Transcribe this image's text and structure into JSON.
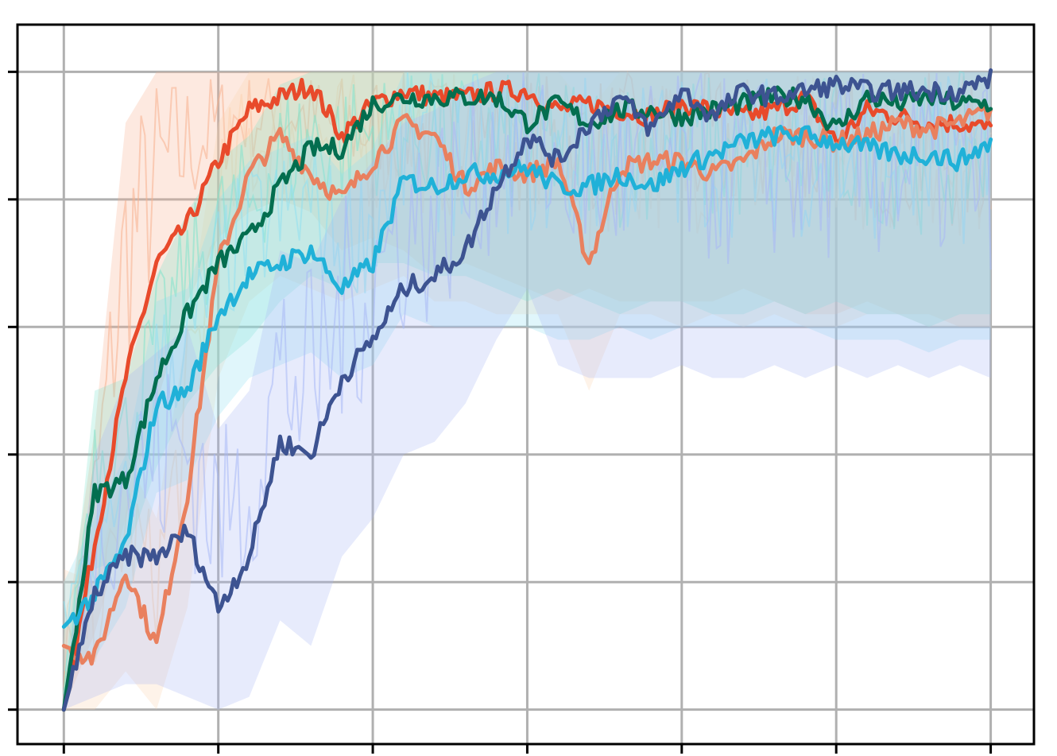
{
  "chart_data": {
    "type": "line",
    "title": "",
    "xlabel": "",
    "ylabel": "",
    "x_ticks": [
      0,
      1,
      2,
      3,
      4,
      5,
      6
    ],
    "y_ticks": [
      0,
      1,
      2,
      3,
      4,
      5
    ],
    "xlim": [
      -0.3,
      6.28
    ],
    "ylim": [
      -0.27,
      5.37
    ],
    "tick_labels_shown": false,
    "grid": true,
    "legend": "none",
    "x": [
      0.0,
      0.2,
      0.4,
      0.6,
      0.8,
      1.0,
      1.2,
      1.4,
      1.6,
      1.8,
      2.0,
      2.2,
      2.4,
      2.6,
      2.8,
      3.0,
      3.2,
      3.4,
      3.6,
      3.8,
      4.0,
      4.2,
      4.4,
      4.6,
      4.8,
      5.0,
      5.2,
      5.4,
      5.6,
      5.8,
      6.0
    ],
    "series": [
      {
        "color": "#e84a2b",
        "band_color": "#f7b08e",
        "values": [
          0.0,
          1.3,
          2.6,
          3.5,
          3.8,
          4.3,
          4.7,
          4.8,
          4.9,
          4.5,
          4.75,
          4.85,
          4.8,
          4.8,
          4.85,
          4.85,
          4.7,
          4.75,
          4.7,
          4.65,
          4.75,
          4.7,
          4.65,
          4.7,
          4.8,
          4.45,
          4.7,
          4.65,
          4.6,
          4.6,
          4.55
        ],
        "band_low": [
          0.0,
          0.6,
          1.5,
          2.4,
          3.2,
          3.7,
          3.9,
          4.0,
          3.9,
          3.6,
          3.7,
          3.6,
          3.4,
          3.5,
          3.4,
          3.3,
          3.2,
          3.3,
          3.2,
          3.2,
          3.2,
          3.2,
          3.3,
          3.2,
          3.1,
          3.1,
          3.2,
          3.1,
          3.1,
          3.0,
          3.0
        ],
        "band_high": [
          0.5,
          2.2,
          4.6,
          5.0,
          5.0,
          5.0,
          5.0,
          5.0,
          5.0,
          5.0,
          5.0,
          5.0,
          5.0,
          5.0,
          5.0,
          5.0,
          5.0,
          5.0,
          5.0,
          5.0,
          5.0,
          5.0,
          5.0,
          5.0,
          5.0,
          5.0,
          5.0,
          5.0,
          5.0,
          5.0,
          5.0
        ]
      },
      {
        "color": "#e9805e",
        "band_color": "#fcd3b0",
        "values": [
          0.5,
          0.4,
          1.1,
          0.5,
          1.7,
          3.5,
          4.2,
          4.5,
          4.2,
          4.0,
          4.3,
          4.6,
          4.5,
          4.1,
          4.25,
          4.2,
          4.3,
          3.5,
          4.25,
          4.3,
          4.3,
          4.2,
          4.3,
          4.5,
          4.5,
          4.45,
          4.5,
          4.6,
          4.55,
          4.6,
          4.7
        ],
        "band_low": [
          0.0,
          0.0,
          0.3,
          0.0,
          0.8,
          2.6,
          3.2,
          3.4,
          3.3,
          3.2,
          3.3,
          3.4,
          3.2,
          3.2,
          3.1,
          3.1,
          3.1,
          2.5,
          3.1,
          3.1,
          3.0,
          3.1,
          3.0,
          3.1,
          3.0,
          3.0,
          3.1,
          3.1,
          3.0,
          3.0,
          3.0
        ],
        "band_high": [
          1.1,
          1.0,
          2.0,
          1.5,
          3.0,
          4.6,
          5.0,
          5.0,
          5.0,
          5.0,
          5.0,
          5.0,
          5.0,
          5.0,
          5.0,
          5.0,
          5.0,
          4.7,
          5.0,
          5.0,
          5.0,
          5.0,
          5.0,
          5.0,
          5.0,
          5.0,
          5.0,
          5.0,
          5.0,
          5.0,
          5.0
        ]
      },
      {
        "color": "#036e4f",
        "band_color": "#7fe3cc",
        "values": [
          0.0,
          1.7,
          1.8,
          2.6,
          3.1,
          3.5,
          3.7,
          4.1,
          4.4,
          4.4,
          4.75,
          4.8,
          4.8,
          4.8,
          4.8,
          4.6,
          4.75,
          4.6,
          4.7,
          4.7,
          4.65,
          4.7,
          4.75,
          4.8,
          4.8,
          4.55,
          4.8,
          4.75,
          4.8,
          4.75,
          4.75
        ],
        "band_low": [
          0.0,
          1.1,
          1.2,
          1.9,
          2.4,
          2.7,
          2.9,
          3.2,
          3.4,
          3.3,
          3.5,
          3.5,
          3.4,
          3.4,
          3.3,
          3.2,
          3.3,
          3.2,
          3.1,
          3.2,
          3.2,
          3.1,
          3.1,
          3.2,
          3.1,
          3.2,
          3.1,
          3.1,
          3.0,
          3.1,
          3.1
        ],
        "band_high": [
          0.2,
          2.5,
          2.6,
          3.4,
          3.9,
          4.3,
          4.5,
          4.9,
          5.0,
          5.0,
          5.0,
          5.0,
          5.0,
          5.0,
          5.0,
          5.0,
          5.0,
          5.0,
          5.0,
          5.0,
          5.0,
          5.0,
          5.0,
          5.0,
          5.0,
          5.0,
          5.0,
          5.0,
          5.0,
          5.0,
          5.0
        ]
      },
      {
        "color": "#20b1d8",
        "band_color": "#8fe0f1",
        "values": [
          0.65,
          0.9,
          1.3,
          2.4,
          2.5,
          3.1,
          3.4,
          3.5,
          3.6,
          3.3,
          3.5,
          4.15,
          4.1,
          4.2,
          4.2,
          4.25,
          4.1,
          4.1,
          4.2,
          4.1,
          4.25,
          4.35,
          4.45,
          4.5,
          4.5,
          4.45,
          4.4,
          4.35,
          4.35,
          4.3,
          4.45
        ],
        "band_low": [
          0.3,
          0.4,
          0.8,
          1.7,
          1.8,
          2.3,
          2.6,
          2.7,
          2.8,
          2.6,
          2.7,
          3.1,
          3.0,
          3.0,
          3.0,
          3.0,
          2.9,
          2.9,
          3.0,
          2.9,
          3.0,
          3.0,
          3.0,
          3.0,
          3.0,
          2.9,
          2.9,
          2.9,
          2.8,
          2.9,
          2.9
        ],
        "band_high": [
          1.0,
          1.5,
          2.0,
          3.2,
          3.3,
          4.0,
          4.3,
          4.4,
          4.5,
          4.2,
          4.4,
          5.0,
          5.0,
          5.0,
          5.0,
          5.0,
          5.0,
          5.0,
          5.0,
          5.0,
          5.0,
          5.0,
          5.0,
          5.0,
          5.0,
          5.0,
          5.0,
          5.0,
          5.0,
          5.0,
          5.0
        ]
      },
      {
        "color": "#3d5391",
        "band_color": "#a8b8f5",
        "values": [
          0.0,
          0.9,
          1.2,
          1.2,
          1.4,
          0.8,
          1.2,
          2.1,
          2.0,
          2.6,
          2.9,
          3.3,
          3.4,
          3.6,
          4.1,
          4.5,
          4.3,
          4.6,
          4.8,
          4.55,
          4.85,
          4.65,
          4.85,
          4.8,
          4.85,
          4.9,
          4.85,
          4.85,
          4.85,
          4.85,
          4.95
        ],
        "band_low": [
          0.0,
          0.1,
          0.2,
          0.2,
          0.1,
          0.0,
          0.1,
          0.7,
          0.5,
          1.2,
          1.5,
          2.0,
          2.1,
          2.4,
          2.9,
          3.3,
          2.7,
          2.6,
          2.6,
          2.6,
          2.7,
          2.6,
          2.6,
          2.7,
          2.6,
          2.7,
          2.6,
          2.7,
          2.6,
          2.7,
          2.6
        ],
        "band_high": [
          0.1,
          2.0,
          2.6,
          2.8,
          3.0,
          2.2,
          2.5,
          3.6,
          3.5,
          4.0,
          4.3,
          4.6,
          4.7,
          4.9,
          5.0,
          5.0,
          5.0,
          5.0,
          5.0,
          5.0,
          5.0,
          5.0,
          5.0,
          5.0,
          5.0,
          5.0,
          5.0,
          5.0,
          5.0,
          5.0,
          5.0
        ]
      }
    ]
  }
}
